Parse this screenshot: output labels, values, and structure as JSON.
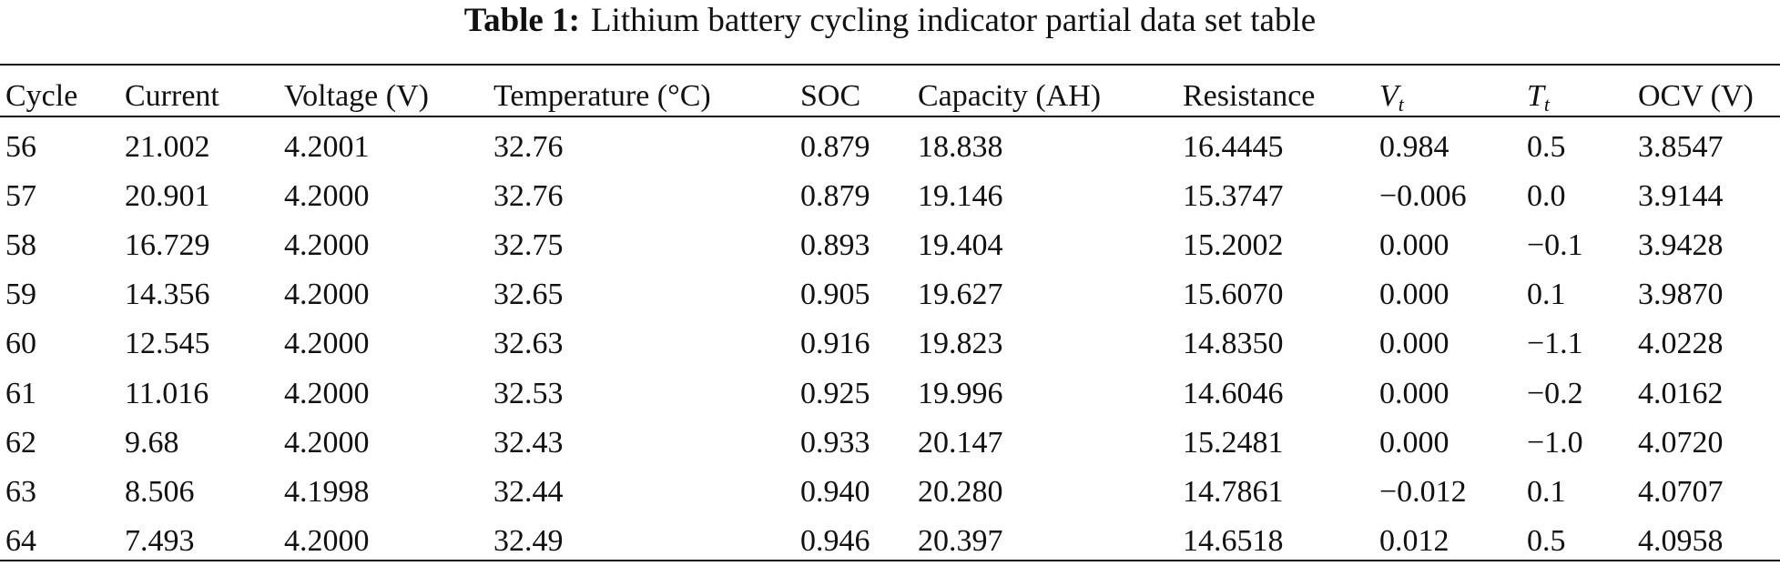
{
  "header": {
    "label": "Table 1:",
    "title": "Lithium battery cycling indicator partial data set table"
  },
  "table": {
    "columns": [
      "Cycle",
      "Current",
      "Voltage (V)",
      "Temperature (°C)",
      "SOC",
      "Capacity (AH)",
      "Resistance",
      {
        "text": "V",
        "sub": "t"
      },
      {
        "text": "T",
        "sub": "t"
      },
      "OCV (V)"
    ],
    "rows": [
      [
        "56",
        "21.002",
        "4.2001",
        "32.76",
        "0.879",
        "18.838",
        "16.4445",
        "0.984",
        "0.5",
        "3.8547"
      ],
      [
        "57",
        "20.901",
        "4.2000",
        "32.76",
        "0.879",
        "19.146",
        "15.3747",
        "−0.006",
        "0.0",
        "3.9144"
      ],
      [
        "58",
        "16.729",
        "4.2000",
        "32.75",
        "0.893",
        "19.404",
        "15.2002",
        "0.000",
        "−0.1",
        "3.9428"
      ],
      [
        "59",
        "14.356",
        "4.2000",
        "32.65",
        "0.905",
        "19.627",
        "15.6070",
        "0.000",
        "0.1",
        "3.9870"
      ],
      [
        "60",
        "12.545",
        "4.2000",
        "32.63",
        "0.916",
        "19.823",
        "14.8350",
        "0.000",
        "−1.1",
        "4.0228"
      ],
      [
        "61",
        "11.016",
        "4.2000",
        "32.53",
        "0.925",
        "19.996",
        "14.6046",
        "0.000",
        "−0.2",
        "4.0162"
      ],
      [
        "62",
        "9.68",
        "4.2000",
        "32.43",
        "0.933",
        "20.147",
        "15.2481",
        "0.000",
        "−1.0",
        "4.0720"
      ],
      [
        "63",
        "8.506",
        "4.1998",
        "32.44",
        "0.940",
        "20.280",
        "14.7861",
        "−0.012",
        "0.1",
        "4.0707"
      ],
      [
        "64",
        "7.493",
        "4.2000",
        "32.49",
        "0.946",
        "20.397",
        "14.6518",
        "0.012",
        "0.5",
        "4.0958"
      ]
    ]
  }
}
